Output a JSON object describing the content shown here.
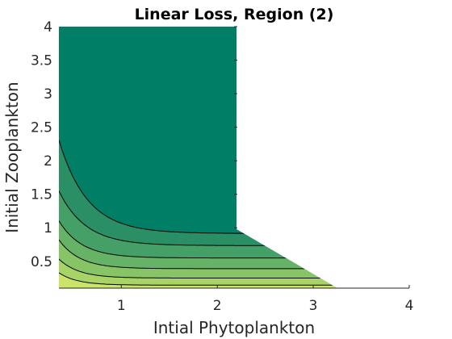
{
  "chart_data": {
    "type": "contour",
    "title": "Linear Loss, Region (2)",
    "xlabel": "Intial Phytoplankton",
    "ylabel": "Initial Zooplankton",
    "xlim": [
      0.35,
      4
    ],
    "ylim": [
      0.1,
      4
    ],
    "x_ticks": [
      1,
      2,
      3,
      4
    ],
    "x_tick_labels": [
      "1",
      "2",
      "3",
      "4"
    ],
    "y_ticks": [
      0.5,
      1,
      1.5,
      2,
      2.5,
      3,
      3.5,
      4
    ],
    "y_tick_labels": [
      "0.5",
      "1",
      "1.5",
      "2",
      "2.5",
      "3",
      "3.5",
      "4"
    ],
    "grid": false,
    "colormap": "summer",
    "region": {
      "x_left": 0.35,
      "x_cut": 2.2,
      "y_top": 4.0,
      "y_bottom": 0.1,
      "diagonal_from": [
        2.2,
        0.98
      ],
      "diagonal_to": [
        3.25,
        0.1
      ]
    },
    "bands": [
      {
        "level": 1,
        "color": "#ffff66"
      },
      {
        "level": 2,
        "color": "#e4ef66"
      },
      {
        "level": 3,
        "color": "#c9e466"
      },
      {
        "level": 4,
        "color": "#a8d466"
      },
      {
        "level": 5,
        "color": "#87c466"
      },
      {
        "level": 6,
        "color": "#66b266"
      },
      {
        "level": 7,
        "color": "#44a066"
      },
      {
        "level": 8,
        "color": "#2b8f66"
      },
      {
        "level": 9,
        "color": "#007f66"
      }
    ],
    "contours": [
      {
        "level": 8,
        "x_start": 0.36,
        "y_start": 2.26,
        "y_asym": 0.915,
        "k": 3.4
      },
      {
        "level": 7,
        "x_start": 0.36,
        "y_start": 1.52,
        "y_asym": 0.735,
        "k": 3.6
      },
      {
        "level": 6,
        "x_start": 0.36,
        "y_start": 1.08,
        "y_asym": 0.55,
        "k": 4.2
      },
      {
        "level": 5,
        "x_start": 0.36,
        "y_start": 0.8,
        "y_asym": 0.39,
        "k": 4.6
      },
      {
        "level": 4,
        "x_start": 0.36,
        "y_start": 0.52,
        "y_asym": 0.25,
        "k": 4.8
      },
      {
        "level": 3,
        "x_start": 0.36,
        "y_start": 0.32,
        "y_asym": 0.145,
        "k": 5.2
      }
    ]
  }
}
